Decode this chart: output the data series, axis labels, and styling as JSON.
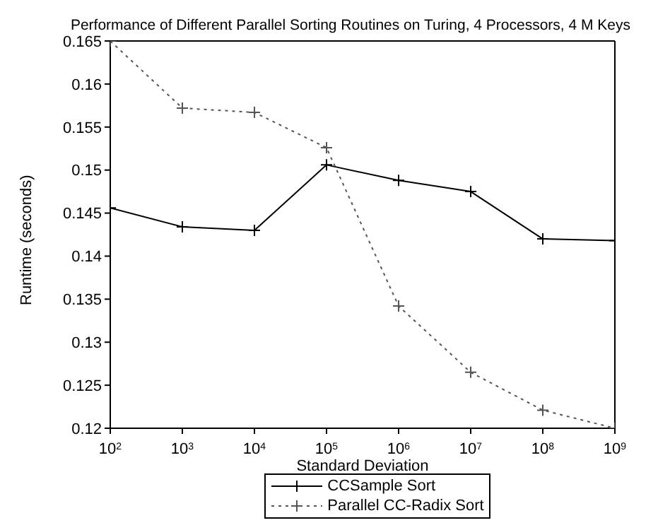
{
  "chart_data": {
    "type": "line",
    "title": "Performance of Different Parallel Sorting Routines on Turing, 4 Processors, 4 M Keys",
    "xlabel": "Standard Deviation",
    "ylabel": "Runtime (seconds)",
    "log": "x",
    "x": [
      100,
      1000,
      10000,
      100000,
      1000000,
      10000000,
      100000000,
      1000000000
    ],
    "xlim": [
      100,
      1000000000
    ],
    "xticks": [
      {
        "value": 100,
        "label": "10$^{2}$"
      },
      {
        "value": 1000,
        "label": "10$^{3}$"
      },
      {
        "value": 10000,
        "label": "10$^{4}$"
      },
      {
        "value": 100000,
        "label": "10$^{5}$"
      },
      {
        "value": 1000000,
        "label": "10$^{6}$"
      },
      {
        "value": 10000000,
        "label": "10$^{7}$"
      },
      {
        "value": 100000000,
        "label": "10$^{8}$"
      },
      {
        "value": 1000000000,
        "label": "10$^{9}$"
      }
    ],
    "ylim": [
      0.12,
      0.165
    ],
    "yticks": [
      0.12,
      0.125,
      0.13,
      0.135,
      0.14,
      0.145,
      0.15,
      0.155,
      0.16,
      0.165
    ],
    "grid": false,
    "legend": "bottom",
    "marker": "cross",
    "series": [
      {
        "name": "CCSample Sort",
        "color": "#000000",
        "line_style": "solid",
        "values": [
          0.1456,
          0.1434,
          0.143,
          0.1506,
          0.1488,
          0.1475,
          0.142,
          0.1418
        ]
      },
      {
        "name": "Parallel CC-Radix Sort",
        "color": "#555555",
        "line_style": "dotted",
        "values": [
          0.165,
          0.1572,
          0.1567,
          0.1526,
          0.1342,
          0.1265,
          0.1221,
          0.12
        ]
      }
    ]
  }
}
